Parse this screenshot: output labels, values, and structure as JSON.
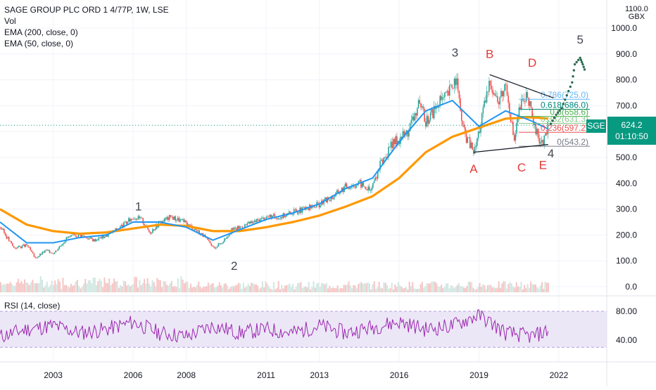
{
  "legend": {
    "title": "SAGE GROUP PLC ORD 1 4/77P, 1W, LSE",
    "vol": "Vol",
    "ema200": "EMA (200, close, 0)",
    "ema50": "EMA (50, close, 0)",
    "rsi": "RSI (14, close)"
  },
  "price_axis": {
    "top_value": "1100.0",
    "unit": "GBX",
    "ticks": [
      "1000.0",
      "900.0",
      "800.0",
      "700.0",
      "600.0",
      "500.0",
      "400.0",
      "300.0",
      "200.0",
      "100.0",
      "0.0"
    ]
  },
  "rsi_axis": {
    "ticks": [
      "80.00",
      "40.00"
    ]
  },
  "time_axis": {
    "ticks": [
      "2003",
      "2006",
      "2008",
      "2011",
      "2013",
      "2016",
      "2019",
      "2022"
    ]
  },
  "current": {
    "symbol": "SGE",
    "price": "624.2",
    "countdown": "01:10:50"
  },
  "colors": {
    "price_up": "#26a69a",
    "price_down": "#ef5350",
    "ema50": "#2196f3",
    "ema200": "#ff9800",
    "rsi_line": "#9c27b0",
    "rsi_band": "#d1c4e9",
    "wave_labels": "#434651",
    "corr_labels": "#e53935",
    "forecast_dots": "#2e6b52",
    "badge": "#089981"
  },
  "fib": [
    {
      "label": "0.786(725.0)",
      "value": 725,
      "color": "#64b5f6"
    },
    {
      "label": "0.618(686.0)",
      "value": 686,
      "color": "#00897b"
    },
    {
      "label": "0.5(658.6)",
      "value": 658.6,
      "color": "#4caf50"
    },
    {
      "label": "0.382(631.3)",
      "value": 631.3,
      "color": "#81c784"
    },
    {
      "label": "0.236(597.2)",
      "value": 597.2,
      "color": "#ef5350"
    },
    {
      "label": "0(543.2)",
      "value": 543.2,
      "color": "#787b86"
    }
  ],
  "wave_labels": [
    "1",
    "2",
    "3",
    "4",
    "5"
  ],
  "corr_labels": [
    "A",
    "B",
    "C",
    "D",
    "E"
  ],
  "chart_data": {
    "type": "line",
    "title": "SAGE GROUP PLC ORD 1 4/77P, 1W, LSE",
    "ylabel": "GBX",
    "ylim": [
      0,
      1100
    ],
    "grid": true,
    "series": [
      {
        "name": "",
        "points": [
          [
            2001.0,
            230
          ],
          [
            2001.5,
            150
          ],
          [
            2002.0,
            160
          ],
          [
            2002.3,
            110
          ],
          [
            2002.7,
            140
          ],
          [
            2003.0,
            130
          ],
          [
            2003.5,
            190
          ],
          [
            2004.0,
            200
          ],
          [
            2004.5,
            180
          ],
          [
            2005.0,
            200
          ],
          [
            2005.5,
            230
          ],
          [
            2006.0,
            270
          ],
          [
            2006.3,
            260
          ],
          [
            2006.6,
            210
          ],
          [
            2007.0,
            250
          ],
          [
            2007.4,
            270
          ],
          [
            2007.8,
            255
          ],
          [
            2008.2,
            230
          ],
          [
            2008.6,
            200
          ],
          [
            2009.0,
            150
          ],
          [
            2009.3,
            170
          ],
          [
            2009.7,
            220
          ],
          [
            2010.0,
            230
          ],
          [
            2010.5,
            250
          ],
          [
            2011.0,
            270
          ],
          [
            2011.5,
            270
          ],
          [
            2012.0,
            290
          ],
          [
            2012.5,
            300
          ],
          [
            2013.0,
            320
          ],
          [
            2013.5,
            350
          ],
          [
            2014.0,
            390
          ],
          [
            2014.5,
            400
          ],
          [
            2014.9,
            370
          ],
          [
            2015.3,
            480
          ],
          [
            2015.8,
            560
          ],
          [
            2016.3,
            600
          ],
          [
            2016.7,
            700
          ],
          [
            2017.0,
            640
          ],
          [
            2017.4,
            700
          ],
          [
            2017.8,
            740
          ],
          [
            2018.1,
            810
          ],
          [
            2018.4,
            600
          ],
          [
            2018.8,
            520
          ],
          [
            2019.1,
            660
          ],
          [
            2019.4,
            800
          ],
          [
            2019.7,
            710
          ],
          [
            2020.0,
            790
          ],
          [
            2020.3,
            560
          ],
          [
            2020.5,
            690
          ],
          [
            2020.8,
            750
          ],
          [
            2021.0,
            630
          ],
          [
            2021.2,
            580
          ],
          [
            2021.4,
            555
          ],
          [
            2021.6,
            624
          ]
        ]
      },
      {
        "name": "",
        "points": [
          [
            2001.0,
            250
          ],
          [
            2002.0,
            170
          ],
          [
            2003.0,
            170
          ],
          [
            2004.0,
            190
          ],
          [
            2005.0,
            200
          ],
          [
            2006.0,
            250
          ],
          [
            2007.0,
            250
          ],
          [
            2008.0,
            230
          ],
          [
            2009.0,
            180
          ],
          [
            2010.0,
            220
          ],
          [
            2011.0,
            260
          ],
          [
            2012.0,
            285
          ],
          [
            2013.0,
            320
          ],
          [
            2014.0,
            380
          ],
          [
            2015.0,
            420
          ],
          [
            2016.0,
            560
          ],
          [
            2017.0,
            680
          ],
          [
            2018.0,
            720
          ],
          [
            2019.0,
            620
          ],
          [
            2020.0,
            680
          ],
          [
            2021.0,
            640
          ],
          [
            2021.6,
            610
          ]
        ]
      },
      {
        "name": "",
        "points": [
          [
            2001.0,
            300
          ],
          [
            2002.0,
            240
          ],
          [
            2003.0,
            215
          ],
          [
            2004.0,
            205
          ],
          [
            2005.0,
            210
          ],
          [
            2006.0,
            225
          ],
          [
            2007.0,
            240
          ],
          [
            2008.0,
            235
          ],
          [
            2009.0,
            215
          ],
          [
            2010.0,
            215
          ],
          [
            2011.0,
            230
          ],
          [
            2012.0,
            250
          ],
          [
            2013.0,
            275
          ],
          [
            2014.0,
            310
          ],
          [
            2015.0,
            350
          ],
          [
            2016.0,
            420
          ],
          [
            2017.0,
            520
          ],
          [
            2018.0,
            580
          ],
          [
            2019.0,
            615
          ],
          [
            2020.0,
            650
          ],
          [
            2021.0,
            655
          ],
          [
            2021.6,
            650
          ]
        ]
      },
      {
        "name": "",
        "points": [
          [
            2001.0,
            45
          ],
          [
            2002.0,
            55
          ],
          [
            2003.0,
            60
          ],
          [
            2004.0,
            50
          ],
          [
            2005.0,
            55
          ],
          [
            2006.0,
            65
          ],
          [
            2007.0,
            50
          ],
          [
            2008.0,
            45
          ],
          [
            2009.0,
            60
          ],
          [
            2010.0,
            50
          ],
          [
            2011.0,
            55
          ],
          [
            2012.0,
            50
          ],
          [
            2013.0,
            60
          ],
          [
            2014.0,
            50
          ],
          [
            2015.0,
            58
          ],
          [
            2016.0,
            65
          ],
          [
            2017.0,
            55
          ],
          [
            2018.0,
            60
          ],
          [
            2019.0,
            75
          ],
          [
            2020.0,
            50
          ],
          [
            2021.0,
            45
          ],
          [
            2021.6,
            53
          ]
        ]
      }
    ],
    "forecast": [
      [
        2021.7,
        630
      ],
      [
        2021.9,
        665
      ],
      [
        2022.1,
        690
      ],
      [
        2022.3,
        740
      ],
      [
        2022.5,
        790
      ],
      [
        2022.6,
        860
      ],
      [
        2022.8,
        885
      ],
      [
        2022.9,
        860
      ],
      [
        2023.0,
        830
      ]
    ],
    "trendlines": [
      {
        "from": [
          2018.8,
          520
        ],
        "to": [
          2021.6,
          550
        ]
      },
      {
        "from": [
          2019.4,
          820
        ],
        "to": [
          2021.8,
          730
        ]
      }
    ]
  }
}
